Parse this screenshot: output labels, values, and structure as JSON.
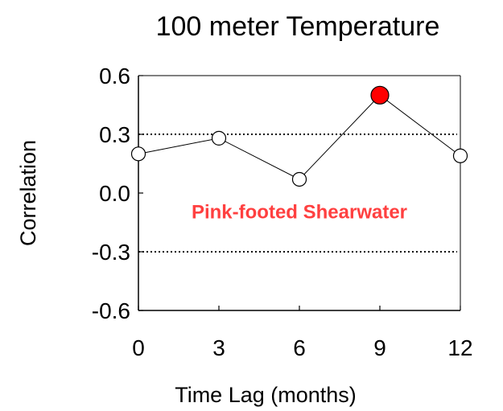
{
  "chart_data": {
    "type": "line",
    "title": "100 meter Temperature",
    "xlabel": "Time Lag (months)",
    "ylabel": "Correlation",
    "x": [
      0,
      3,
      6,
      9,
      12
    ],
    "xticks": [
      "0",
      "3",
      "6",
      "9",
      "12"
    ],
    "xlim": [
      0,
      12
    ],
    "ylim": [
      -0.6,
      0.6
    ],
    "yticks": [
      "0.6",
      "0.3",
      "0.0",
      "-0.3",
      "-0.6"
    ],
    "ytick_values": [
      0.6,
      0.3,
      0.0,
      -0.3,
      -0.6
    ],
    "series": [
      {
        "values": [
          0.2,
          0.28,
          0.07,
          0.5,
          0.19
        ],
        "highlight_index": 3,
        "highlight_color": "#ff0000",
        "marker_color": "#ffffff",
        "line_color": "#000000"
      }
    ],
    "reference_lines": [
      0.3,
      -0.3
    ],
    "annotation": {
      "text": "Pink-footed Shearwater",
      "color": "#ff4040",
      "x": 6,
      "y": -0.13
    },
    "grid": false
  }
}
